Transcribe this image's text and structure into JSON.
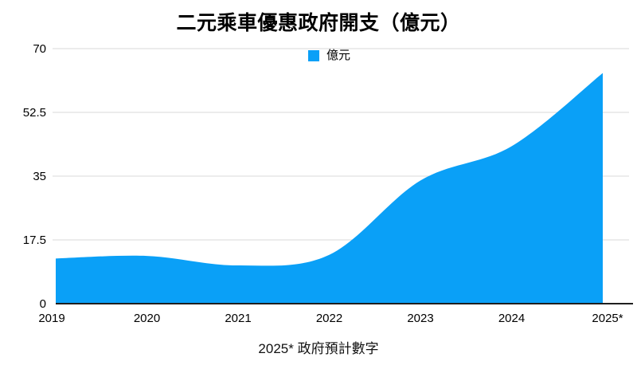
{
  "title": "二元乘車優惠政府開支（億元）",
  "legend": {
    "label": "億元",
    "color": "#0AA0F7"
  },
  "footer": "2025* 政府預計數字",
  "colors": {
    "area": "#0AA0F7",
    "gridline": "#D9D9D9",
    "axis": "#1F1F1F",
    "text": "#000000",
    "background": "#FFFFFF"
  },
  "chart_data": {
    "type": "area",
    "title": "二元乘車優惠政府開支（億元）",
    "categories": [
      "2019",
      "2020",
      "2021",
      "2022",
      "2023",
      "2024",
      "2025*"
    ],
    "series": [
      {
        "name": "億元",
        "values": [
          12.4,
          13.1,
          10.5,
          13.4,
          33.8,
          43.2,
          63.3
        ]
      }
    ],
    "xlabel": "",
    "ylabel": "",
    "ylim": [
      0,
      70
    ],
    "yticks": [
      0,
      17.5,
      35,
      52.5,
      70
    ],
    "grid": true,
    "legend_position": "top-center",
    "annotation": "2025* 政府預計數字"
  }
}
